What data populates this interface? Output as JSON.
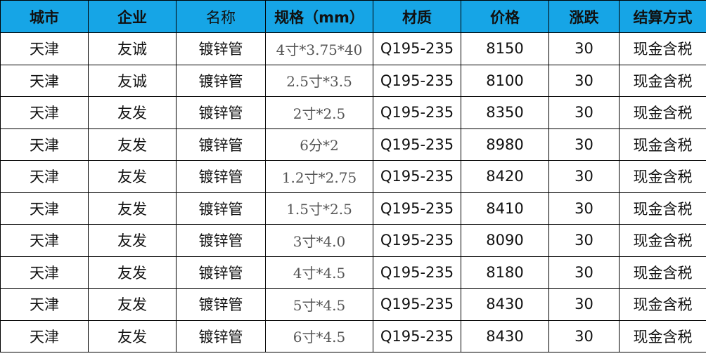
{
  "header_color": "#16a5e6",
  "columns": [
    "城市",
    "企业",
    "名称",
    "规格（mm）",
    "材质",
    "价格",
    "涨跌",
    "结算方式"
  ],
  "rows": [
    [
      "天津",
      "友诚",
      "镀锌管",
      "4寸*3.75*40",
      "Q195-235",
      "8150",
      "30",
      "现金含税"
    ],
    [
      "天津",
      "友诚",
      "镀锌管",
      "2.5寸*3.5",
      "Q195-235",
      "8100",
      "30",
      "现金含税"
    ],
    [
      "天津",
      "友发",
      "镀锌管",
      "2寸*2.5",
      "Q195-235",
      "8350",
      "30",
      "现金含税"
    ],
    [
      "天津",
      "友发",
      "镀锌管",
      "6分*2",
      "Q195-235",
      "8980",
      "30",
      "现金含税"
    ],
    [
      "天津",
      "友发",
      "镀锌管",
      "1.2寸*2.75",
      "Q195-235",
      "8420",
      "30",
      "现金含税"
    ],
    [
      "天津",
      "友发",
      "镀锌管",
      "1.5寸*2.5",
      "Q195-235",
      "8410",
      "30",
      "现金含税"
    ],
    [
      "天津",
      "友发",
      "镀锌管",
      "3寸*4.0",
      "Q195-235",
      "8090",
      "30",
      "现金含税"
    ],
    [
      "天津",
      "友发",
      "镀锌管",
      "4寸*4.5",
      "Q195-235",
      "8180",
      "30",
      "现金含税"
    ],
    [
      "天津",
      "友发",
      "镀锌管",
      "5寸*4.5",
      "Q195-235",
      "8430",
      "30",
      "现金含税"
    ],
    [
      "天津",
      "友发",
      "镀锌管",
      "6寸*4.5",
      "Q195-235",
      "8430",
      "30",
      "现金含税"
    ]
  ]
}
